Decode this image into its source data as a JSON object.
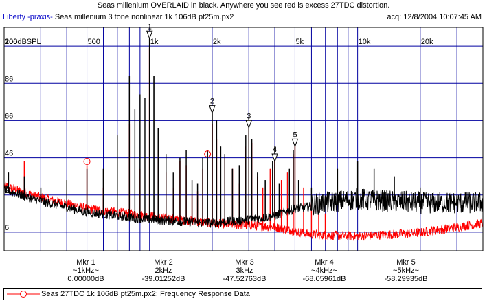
{
  "title": "Seas millenium OVERLAID in black. Anywhere you see red is excess 27TDC distortion.",
  "header": {
    "app_name": "Liberty -praxis-",
    "file_info": "Seas millenium 3 tone nonlinear 1k 106dB pt25m.px2",
    "acq": "acq: 12/8/2004 10:07:45 AM"
  },
  "colors": {
    "grid": "#0000a0",
    "red_trace": "#ff0000",
    "black_trace": "#000000",
    "brand": "#0000c8"
  },
  "chart_data": {
    "type": "line",
    "title": "Seas millenium OVERLAID in black. Anywhere you see red is excess 27TDC distortion.",
    "x_scale": "log",
    "xlim": [
      200,
      40000
    ],
    "ylim": [
      -4,
      116
    ],
    "x_tick_labels": [
      {
        "value": 200,
        "label": "200"
      },
      {
        "value": 500,
        "label": "500"
      },
      {
        "value": 1000,
        "label": "1k"
      },
      {
        "value": 2000,
        "label": "2k"
      },
      {
        "value": 5000,
        "label": "5k"
      },
      {
        "value": 10000,
        "label": "10k"
      },
      {
        "value": 20000,
        "label": "20k"
      }
    ],
    "x_gridlines": [
      200,
      300,
      400,
      500,
      600,
      700,
      800,
      900,
      1000,
      2000,
      3000,
      4000,
      5000,
      6000,
      7000,
      8000,
      9000,
      10000,
      20000,
      30000,
      40000
    ],
    "y_tick_labels": [
      {
        "value": 106,
        "label": "106dBSPL"
      },
      {
        "value": 86,
        "label": "86"
      },
      {
        "value": 66,
        "label": "66"
      },
      {
        "value": 46,
        "label": "46"
      },
      {
        "value": 26,
        "label": "26"
      },
      {
        "value": 6,
        "label": "6"
      }
    ],
    "y_gridlines": [
      106,
      86,
      66,
      46,
      26,
      6
    ],
    "series": [
      {
        "name": "Seas 27TDC 1k 106dB pt25m.px2:  Frequency Response Data",
        "color": "#ff0000",
        "marker": "circle",
        "floor": [
          [
            200,
            30
          ],
          [
            300,
            24
          ],
          [
            500,
            18
          ],
          [
            700,
            16
          ],
          [
            1000,
            14
          ],
          [
            2000,
            10
          ],
          [
            4000,
            8
          ],
          [
            6000,
            4
          ],
          [
            10000,
            3
          ],
          [
            20000,
            5
          ],
          [
            40000,
            10
          ]
        ],
        "peaks": [
          [
            250,
            44
          ],
          [
            500,
            42
          ],
          [
            600,
            30
          ],
          [
            700,
            56
          ],
          [
            800,
            64
          ],
          [
            900,
            40
          ],
          [
            1000,
            105
          ],
          [
            1100,
            50
          ],
          [
            1200,
            38
          ],
          [
            1300,
            30
          ],
          [
            1400,
            44
          ],
          [
            1500,
            42
          ],
          [
            1600,
            26
          ],
          [
            1700,
            28
          ],
          [
            1800,
            40
          ],
          [
            2000,
            64
          ],
          [
            2100,
            56
          ],
          [
            2300,
            46
          ],
          [
            2500,
            40
          ],
          [
            2700,
            32
          ],
          [
            2900,
            52
          ],
          [
            3000,
            62
          ],
          [
            3100,
            54
          ],
          [
            3300,
            36
          ],
          [
            3500,
            30
          ],
          [
            3800,
            40
          ],
          [
            4000,
            46
          ],
          [
            4300,
            34
          ],
          [
            4600,
            38
          ],
          [
            4900,
            48
          ],
          [
            5000,
            56
          ],
          [
            5500,
            30
          ],
          [
            6000,
            22
          ],
          [
            6500,
            18
          ],
          [
            7000,
            16
          ]
        ]
      },
      {
        "name": "Seas millenium OVERLAID",
        "color": "#000000",
        "marker": "none",
        "floor": [
          [
            200,
            28
          ],
          [
            300,
            22
          ],
          [
            500,
            16
          ],
          [
            700,
            14
          ],
          [
            1000,
            12
          ],
          [
            2000,
            10
          ],
          [
            3000,
            12
          ],
          [
            4000,
            14
          ],
          [
            5000,
            18
          ],
          [
            7000,
            20
          ],
          [
            10000,
            22
          ],
          [
            20000,
            20
          ],
          [
            40000,
            20
          ]
        ],
        "peaks": [
          [
            210,
            38
          ],
          [
            250,
            36
          ],
          [
            300,
            30
          ],
          [
            400,
            34
          ],
          [
            500,
            40
          ],
          [
            600,
            40
          ],
          [
            700,
            58
          ],
          [
            800,
            90
          ],
          [
            850,
            72
          ],
          [
            900,
            80
          ],
          [
            950,
            78
          ],
          [
            1000,
            110
          ],
          [
            1050,
            90
          ],
          [
            1100,
            62
          ],
          [
            1200,
            48
          ],
          [
            1300,
            38
          ],
          [
            1400,
            46
          ],
          [
            1500,
            50
          ],
          [
            1600,
            34
          ],
          [
            1700,
            32
          ],
          [
            1800,
            46
          ],
          [
            1900,
            50
          ],
          [
            2000,
            70
          ],
          [
            2100,
            66
          ],
          [
            2200,
            52
          ],
          [
            2300,
            48
          ],
          [
            2500,
            40
          ],
          [
            2700,
            42
          ],
          [
            2900,
            58
          ],
          [
            3000,
            68
          ],
          [
            3100,
            56
          ],
          [
            3300,
            38
          ],
          [
            3600,
            34
          ],
          [
            3900,
            44
          ],
          [
            4000,
            52
          ],
          [
            4200,
            32
          ],
          [
            4700,
            40
          ],
          [
            4900,
            50
          ],
          [
            5000,
            56
          ],
          [
            5200,
            34
          ],
          [
            6000,
            30
          ],
          [
            8000,
            40
          ],
          [
            10000,
            44
          ],
          [
            12000,
            40
          ],
          [
            15000,
            36
          ],
          [
            20000,
            30
          ],
          [
            30000,
            26
          ]
        ]
      }
    ],
    "markers": [
      {
        "id": "1",
        "freq": 1000,
        "level": 110
      },
      {
        "id": "2",
        "freq": 2000,
        "level": 70
      },
      {
        "id": "3",
        "freq": 3000,
        "level": 62
      },
      {
        "id": "4",
        "freq": 4000,
        "level": 44
      },
      {
        "id": "5",
        "freq": 5000,
        "level": 52
      }
    ],
    "red_circle_markers": [
      {
        "freq": 500,
        "level": 44
      },
      {
        "freq": 1900,
        "level": 48
      }
    ],
    "legend": "bottom"
  },
  "marker_readouts": [
    {
      "name": "Mkr 1",
      "freq": "~1kHz~",
      "value": "0.00000dB"
    },
    {
      "name": "Mkr 2",
      "freq": "2kHz",
      "value": "-39.01252dB"
    },
    {
      "name": "Mkr 3",
      "freq": "3kHz",
      "value": "-47.52763dB"
    },
    {
      "name": "Mkr 4",
      "freq": "~4kHz~",
      "value": "-68.05961dB"
    },
    {
      "name": "Mkr 5",
      "freq": "~5kHz~",
      "value": "-58.29935dB"
    }
  ],
  "legend": {
    "label": "Seas 27TDC 1k 106dB pt25m.px2:  Frequency Response Data"
  }
}
